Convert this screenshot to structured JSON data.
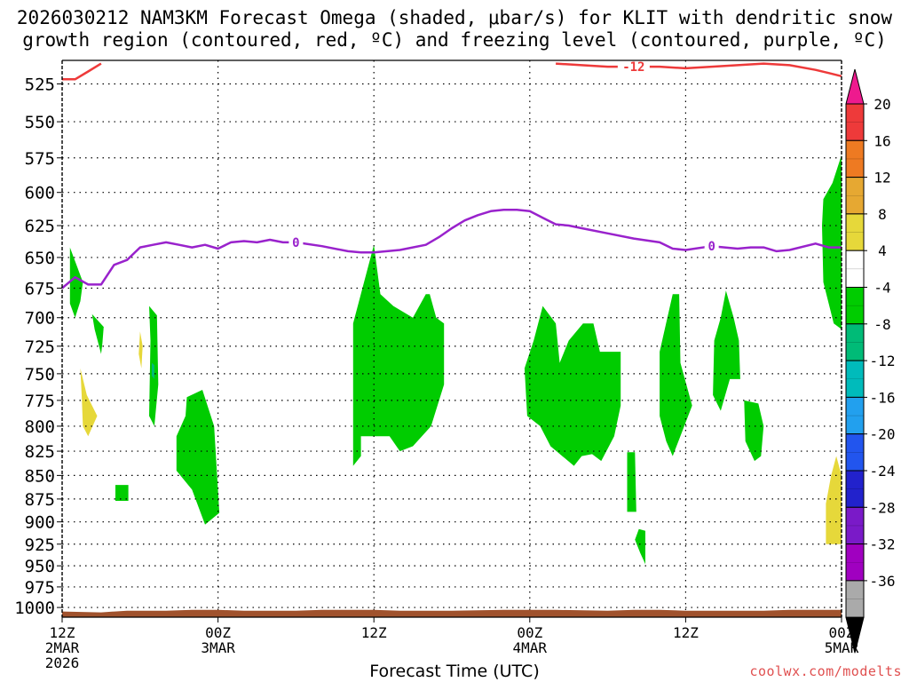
{
  "title": {
    "line1": "2026030212 NAM3KM Forecast Omega (shaded, μbar/s) for KLIT with dendritic snow",
    "line2": "growth region (contoured, red, ºC) and freezing level (contoured, purple, ºC)"
  },
  "credit": "coolwx.com/modelts",
  "chart_data": {
    "type": "heatmap",
    "xlabel": "Forecast Time (UTC)",
    "ylabel": "",
    "x_range_hours": [
      0,
      60
    ],
    "y_range_hpa": [
      510,
      1012
    ],
    "y_scale": "log-pressure",
    "y_ticks": [
      525,
      550,
      575,
      600,
      625,
      650,
      675,
      700,
      725,
      750,
      775,
      800,
      825,
      850,
      875,
      900,
      925,
      950,
      975,
      1000
    ],
    "x_ticks": [
      {
        "hour": 0,
        "lines": [
          "12Z",
          "2MAR",
          "2026"
        ]
      },
      {
        "hour": 12,
        "lines": [
          "00Z",
          "3MAR"
        ]
      },
      {
        "hour": 24,
        "lines": [
          "12Z"
        ]
      },
      {
        "hour": 36,
        "lines": [
          "00Z",
          "4MAR"
        ]
      },
      {
        "hour": 48,
        "lines": [
          "12Z"
        ]
      },
      {
        "hour": 60,
        "lines": [
          "00Z",
          "5MAR"
        ]
      }
    ],
    "grid": true,
    "colorbar": {
      "labels": [
        "20",
        "16",
        "12",
        "8",
        "4",
        "-4",
        "-8",
        "-12",
        "-16",
        "-20",
        "-24",
        "-28",
        "-32",
        "-36"
      ],
      "colors": [
        "#ee1a8e",
        "#ee3a3a",
        "#ee7a22",
        "#e6a832",
        "#e6d83a",
        "#ffffff",
        "#00cc00",
        "#00bb77",
        "#00bbbb",
        "#22a0ee",
        "#2255ee",
        "#2222cc",
        "#7a1ac8",
        "#a000c0",
        "#aaaaaa",
        "#000000"
      ]
    },
    "contours": [
      {
        "name": "freezing level",
        "color": "#9922cc",
        "label": "0",
        "points": [
          [
            0,
            675
          ],
          [
            1,
            666
          ],
          [
            2,
            672
          ],
          [
            3,
            672
          ],
          [
            4,
            656
          ],
          [
            5,
            652
          ],
          [
            6,
            642
          ],
          [
            7,
            640
          ],
          [
            8,
            638
          ],
          [
            9,
            640
          ],
          [
            10,
            642
          ],
          [
            11,
            640
          ],
          [
            12,
            643
          ],
          [
            13,
            638
          ],
          [
            14,
            637
          ],
          [
            15,
            638
          ],
          [
            16,
            636
          ],
          [
            17,
            638
          ],
          [
            18,
            638
          ],
          [
            20,
            641
          ],
          [
            22,
            645
          ],
          [
            23,
            646
          ],
          [
            24,
            646
          ],
          [
            26,
            644
          ],
          [
            28,
            640
          ],
          [
            29,
            634
          ],
          [
            30,
            627
          ],
          [
            31,
            621
          ],
          [
            32,
            617
          ],
          [
            33,
            614
          ],
          [
            34,
            613
          ],
          [
            35,
            613
          ],
          [
            36,
            614
          ],
          [
            37,
            619
          ],
          [
            38,
            624
          ],
          [
            39,
            625
          ],
          [
            40,
            627
          ],
          [
            42,
            631
          ],
          [
            44,
            635
          ],
          [
            46,
            638
          ],
          [
            47,
            643
          ],
          [
            48,
            644
          ],
          [
            50,
            641
          ],
          [
            52,
            643
          ],
          [
            53,
            642
          ],
          [
            54,
            642
          ],
          [
            55,
            645
          ],
          [
            56,
            644
          ],
          [
            58,
            639
          ],
          [
            59,
            642
          ],
          [
            60,
            642
          ]
        ]
      },
      {
        "name": "dendritic growth top",
        "color": "#ee3a3a",
        "label": "-12",
        "points": [
          [
            0,
            522
          ],
          [
            1,
            522
          ],
          [
            2,
            517
          ],
          [
            3,
            512
          ]
        ]
      },
      {
        "name": "dendritic growth top 2",
        "color": "#ee3a3a",
        "label": "-12",
        "points": [
          [
            38,
            512
          ],
          [
            40,
            513
          ],
          [
            42,
            514
          ],
          [
            44,
            514
          ],
          [
            46,
            514
          ],
          [
            48,
            515
          ],
          [
            50,
            514
          ],
          [
            52,
            513
          ],
          [
            54,
            512
          ],
          [
            56,
            513
          ],
          [
            58,
            516
          ],
          [
            59,
            518
          ],
          [
            60,
            520
          ]
        ]
      }
    ],
    "regions": [
      {
        "name": "omega -4 to -8",
        "color": "#00cc00",
        "polygons": [
          [
            [
              0.6,
              642
            ],
            [
              1.6,
              670
            ],
            [
              1.4,
              686
            ],
            [
              1.0,
              700
            ],
            [
              0.6,
              688
            ]
          ],
          [
            [
              2.3,
              697
            ],
            [
              3.2,
              708
            ],
            [
              3.1,
              722
            ],
            [
              3.0,
              732
            ],
            [
              2.5,
              710
            ]
          ],
          [
            [
              6.7,
              690
            ],
            [
              7.3,
              698
            ],
            [
              7.4,
              760
            ],
            [
              7.1,
              800
            ],
            [
              6.7,
              790
            ],
            [
              6.8,
              720
            ]
          ],
          [
            [
              4.1,
              860
            ],
            [
              5.1,
              860
            ],
            [
              5.1,
              877
            ],
            [
              4.1,
              877
            ]
          ],
          [
            [
              9.6,
              772
            ],
            [
              10.8,
              765
            ],
            [
              11.7,
              800
            ],
            [
              12.1,
              890
            ],
            [
              11.0,
              903
            ],
            [
              10.0,
              865
            ],
            [
              8.8,
              845
            ],
            [
              8.8,
              810
            ],
            [
              9.5,
              790
            ]
          ],
          [
            [
              22.4,
              705
            ],
            [
              24.0,
              640
            ],
            [
              24.5,
              680
            ],
            [
              25.5,
              690
            ],
            [
              27.0,
              700
            ],
            [
              28.0,
              680
            ],
            [
              28.3,
              680
            ],
            [
              28.8,
              700
            ],
            [
              29.4,
              705
            ],
            [
              29.4,
              760
            ],
            [
              28.4,
              800
            ],
            [
              27.0,
              820
            ],
            [
              26.0,
              825
            ],
            [
              25.2,
              810
            ],
            [
              23.0,
              810
            ],
            [
              23.0,
              830
            ],
            [
              22.4,
              840
            ],
            [
              22.4,
              780
            ]
          ],
          [
            [
              37.0,
              690
            ],
            [
              38.0,
              705
            ],
            [
              38.3,
              740
            ],
            [
              39.0,
              720
            ],
            [
              40.1,
              705
            ],
            [
              40.9,
              705
            ],
            [
              41.4,
              730
            ],
            [
              43.0,
              730
            ],
            [
              43.0,
              780
            ],
            [
              42.5,
              810
            ],
            [
              41.5,
              835
            ],
            [
              40.8,
              828
            ],
            [
              40.0,
              830
            ],
            [
              39.4,
              840
            ],
            [
              38.5,
              830
            ],
            [
              37.6,
              820
            ],
            [
              36.8,
              800
            ],
            [
              35.8,
              790
            ],
            [
              35.6,
              745
            ],
            [
              36.3,
              720
            ]
          ],
          [
            [
              46.0,
              730
            ],
            [
              47.0,
              680
            ],
            [
              47.5,
              680
            ],
            [
              47.6,
              740
            ],
            [
              48.5,
              780
            ],
            [
              47.0,
              830
            ],
            [
              46.5,
              815
            ],
            [
              46.0,
              790
            ]
          ],
          [
            [
              43.5,
              826
            ],
            [
              44.1,
              826
            ],
            [
              44.2,
              889
            ],
            [
              43.5,
              889
            ]
          ],
          [
            [
              44.4,
              908
            ],
            [
              44.9,
              910
            ],
            [
              44.9,
              948
            ],
            [
              44.5,
              935
            ],
            [
              44.1,
              920
            ]
          ],
          [
            [
              51.1,
              677
            ],
            [
              51.7,
              700
            ],
            [
              52.1,
              720
            ],
            [
              52.2,
              755
            ],
            [
              51.4,
              755
            ],
            [
              50.7,
              785
            ],
            [
              50.1,
              770
            ],
            [
              50.2,
              720
            ],
            [
              50.7,
              700
            ]
          ],
          [
            [
              52.5,
              775
            ],
            [
              53.6,
              778
            ],
            [
              54.0,
              800
            ],
            [
              53.8,
              830
            ],
            [
              53.3,
              835
            ],
            [
              52.6,
              815
            ]
          ],
          [
            [
              59.3,
              593
            ],
            [
              60.0,
              573
            ],
            [
              60.0,
              710
            ],
            [
              59.4,
              705
            ],
            [
              58.6,
              670
            ],
            [
              58.5,
              625
            ],
            [
              58.6,
              605
            ]
          ]
        ]
      },
      {
        "name": "omega 4 to 8",
        "color": "#e6d83a",
        "polygons": [
          [
            [
              1.4,
              745
            ],
            [
              1.9,
              770
            ],
            [
              2.7,
              790
            ],
            [
              2.0,
              810
            ],
            [
              1.6,
              800
            ],
            [
              1.5,
              770
            ]
          ],
          [
            [
              6.0,
              712
            ],
            [
              6.2,
              725
            ],
            [
              6.1,
              745
            ],
            [
              5.9,
              732
            ]
          ],
          [
            [
              59.6,
              830
            ],
            [
              60.0,
              850
            ],
            [
              60.0,
              925
            ],
            [
              58.8,
              925
            ],
            [
              58.8,
              880
            ],
            [
              59.2,
              850
            ]
          ]
        ]
      },
      {
        "name": "omega -8 to -12",
        "color": "#00bb77",
        "polygons": [
          [
            [
              6.9,
              740
            ],
            [
              7.1,
              742
            ],
            [
              7.1,
              755
            ],
            [
              6.9,
              752
            ]
          ]
        ]
      }
    ]
  }
}
